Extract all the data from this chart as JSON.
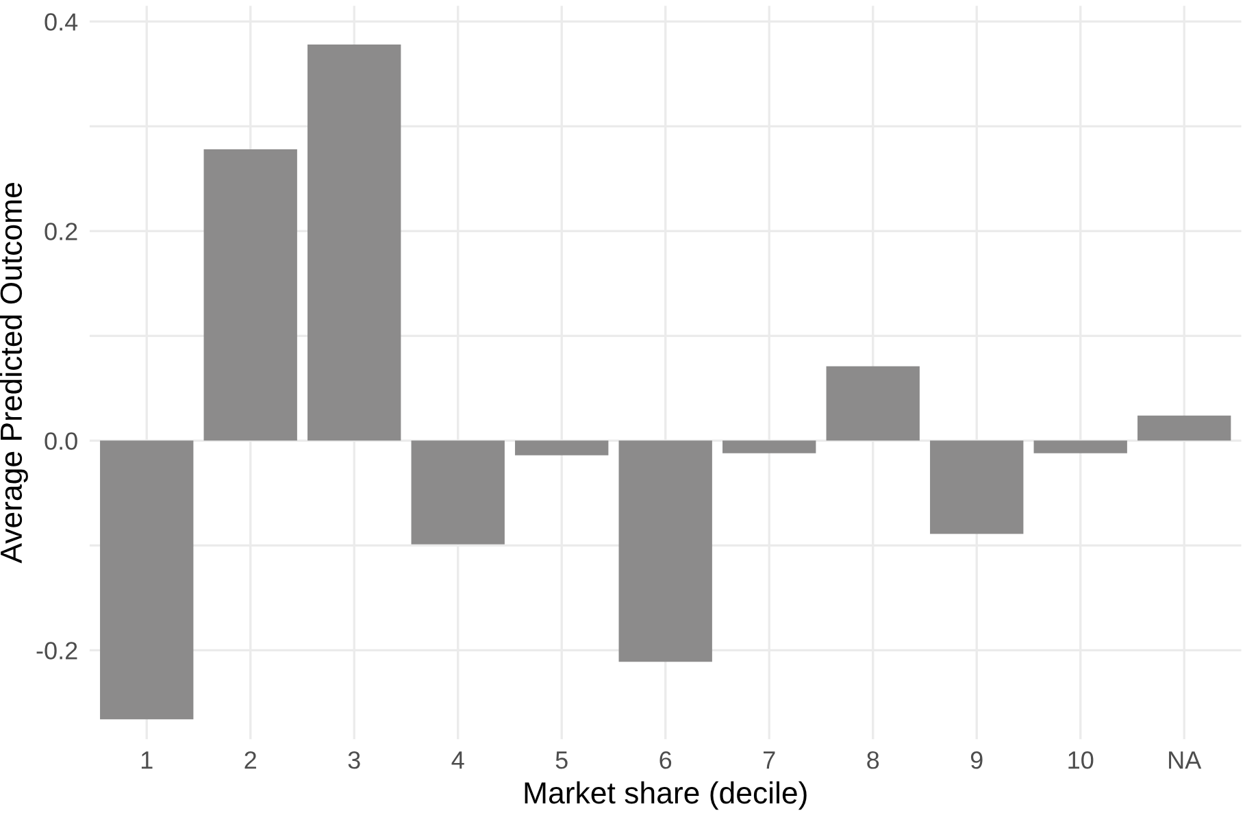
{
  "chart_data": {
    "type": "bar",
    "xlabel": "Market share (decile)",
    "ylabel": "Average Predicted Outcome",
    "categories": [
      "1",
      "2",
      "3",
      "4",
      "5",
      "6",
      "7",
      "8",
      "9",
      "10",
      "NA"
    ],
    "values": [
      -0.266,
      0.278,
      0.378,
      -0.099,
      -0.014,
      -0.211,
      -0.012,
      0.071,
      -0.089,
      -0.012,
      0.024
    ],
    "color": "#8c8b8b",
    "ylim": [
      -0.285,
      0.415
    ],
    "yticks": [
      {
        "value": -0.2,
        "label": "-0.2"
      },
      {
        "value": -0.1,
        "label": null
      },
      {
        "value": 0,
        "label": "0.0"
      },
      {
        "value": 0.1,
        "label": null
      },
      {
        "value": 0.2,
        "label": "0.2"
      },
      {
        "value": 0.3,
        "label": null
      },
      {
        "value": 0.4,
        "label": "0.4"
      }
    ],
    "grid": true
  }
}
